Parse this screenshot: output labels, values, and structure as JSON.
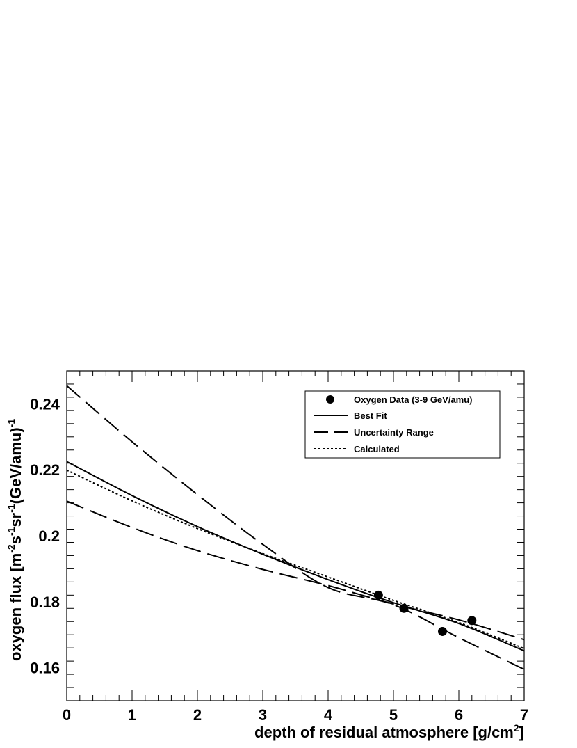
{
  "chart_data": {
    "type": "line",
    "xlabel": {
      "main": "depth of residual atmosphere [g/cm",
      "sup": "2",
      "end": "]"
    },
    "ylabel": {
      "p1": "oxygen flux [m",
      "s1": "-2",
      "p2": "s",
      "s2": "-1",
      "p3": "sr",
      "s3": "-1",
      "p4": "(GeV/amu)",
      "s4": "-1"
    },
    "xlim": [
      0,
      7
    ],
    "ylim": [
      0.15,
      0.25
    ],
    "x_ticks": [
      0,
      1,
      2,
      3,
      4,
      5,
      6,
      7
    ],
    "x_tick_labels": [
      "0",
      "1",
      "2",
      "3",
      "4",
      "5",
      "6",
      "7"
    ],
    "y_ticks": [
      0.16,
      0.18,
      0.2,
      0.22,
      0.24
    ],
    "y_tick_labels": [
      "0.16",
      "0.18",
      "0.2",
      "0.22",
      "0.24"
    ],
    "grid": false,
    "legend_position": "top-right",
    "legend": [
      {
        "label": "Oxygen Data (3-9 GeV/amu)",
        "style": "marker"
      },
      {
        "label": "Best Fit",
        "style": "solid"
      },
      {
        "label": "Uncertainty Range",
        "style": "dashed"
      },
      {
        "label": "Calculated",
        "style": "dotted"
      }
    ],
    "series": [
      {
        "name": "Oxygen Data (3-9 GeV/amu)",
        "kind": "scatter",
        "x": [
          4.77,
          5.16,
          5.75,
          6.2
        ],
        "y": [
          0.182,
          0.178,
          0.171,
          0.1743
        ]
      },
      {
        "name": "Best Fit",
        "kind": "curve",
        "x": [
          0,
          1,
          2,
          3,
          4,
          5,
          6,
          7
        ],
        "y": [
          0.2225,
          0.2122,
          0.2028,
          0.1944,
          0.1867,
          0.1797,
          0.1734,
          0.1651
        ]
      },
      {
        "name": "Uncertainty Range",
        "kind": "curve",
        "part": "upper",
        "x": [
          0,
          1,
          2,
          3,
          4,
          5,
          6,
          7
        ],
        "y": [
          0.2455,
          0.2285,
          0.2125,
          0.1974,
          0.1843,
          0.1791,
          0.1691,
          0.1595
        ]
      },
      {
        "name": "Uncertainty Range",
        "kind": "curve",
        "part": "lower",
        "x": [
          0,
          1,
          2,
          3,
          4,
          5,
          6,
          7
        ],
        "y": [
          0.2105,
          0.2025,
          0.1955,
          0.1898,
          0.1849,
          0.1793,
          0.1745,
          0.1685
        ]
      },
      {
        "name": "Calculated",
        "kind": "curve",
        "x": [
          0,
          1,
          2,
          3,
          4,
          5,
          6,
          7
        ],
        "y": [
          0.2199,
          0.2106,
          0.2022,
          0.1946,
          0.1875,
          0.1804,
          0.1737,
          0.1658
        ]
      }
    ]
  },
  "colors": {
    "background": "#ffffff",
    "ink": "#000000"
  }
}
